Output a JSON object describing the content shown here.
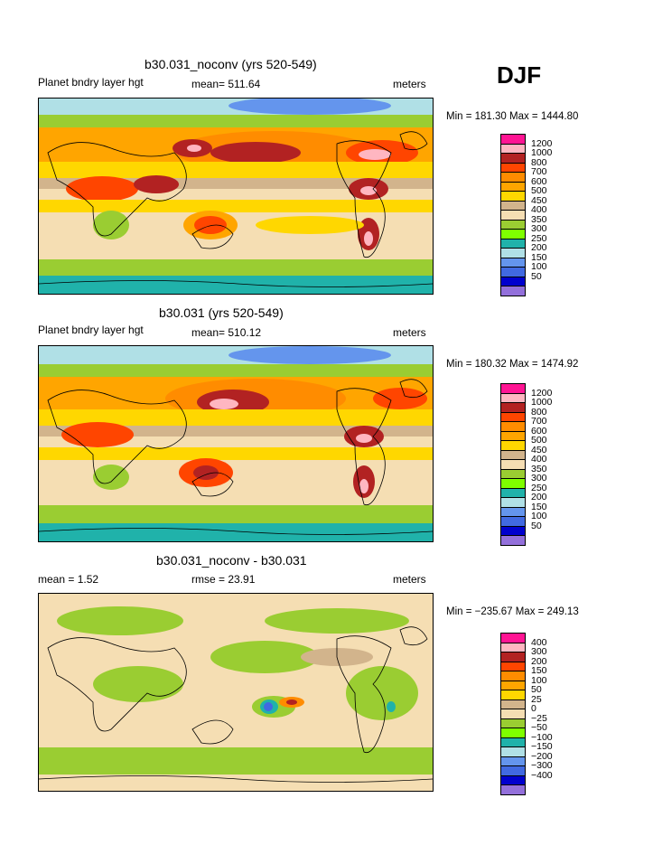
{
  "season": "DJF",
  "panels": [
    {
      "title": "b30.031_noconv (yrs 520-549)",
      "variable": "Planet bndry layer hgt",
      "mean_text": "mean= 511.64",
      "units": "meters",
      "minmax": "Min = 181.30 Max = 1444.80",
      "levels": [
        "1200",
        "1000",
        "800",
        "700",
        "600",
        "500",
        "450",
        "400",
        "350",
        "300",
        "250",
        "200",
        "150",
        "100",
        "50"
      ]
    },
    {
      "title": "b30.031 (yrs 520-549)",
      "variable": "Planet bndry layer hgt",
      "mean_text": "mean= 510.12",
      "units": "meters",
      "minmax": "Min = 180.32 Max = 1474.92",
      "levels": [
        "1200",
        "1000",
        "800",
        "700",
        "600",
        "500",
        "450",
        "400",
        "350",
        "300",
        "250",
        "200",
        "150",
        "100",
        "50"
      ]
    },
    {
      "title": "b30.031_noconv - b30.031",
      "mean_text": "mean =   1.52",
      "rmse_text": "rmse =  23.91",
      "units": "meters",
      "minmax": "Min = −235.67 Max = 249.13",
      "levels": [
        "400",
        "300",
        "200",
        "150",
        "100",
        "50",
        "25",
        "0",
        "−25",
        "−50",
        "−100",
        "−150",
        "−200",
        "−300",
        "−400"
      ]
    }
  ],
  "colorbar_colors": [
    "#ff1493",
    "#ffb6c1",
    "#b22222",
    "#ff4500",
    "#ff8c00",
    "#ffa500",
    "#ffd700",
    "#d2b48c",
    "#f5deb3",
    "#9acd32",
    "#7fff00",
    "#20b2aa",
    "#b0e0e6",
    "#6495ed",
    "#4169e1",
    "#0000cd",
    "#9370db"
  ]
}
